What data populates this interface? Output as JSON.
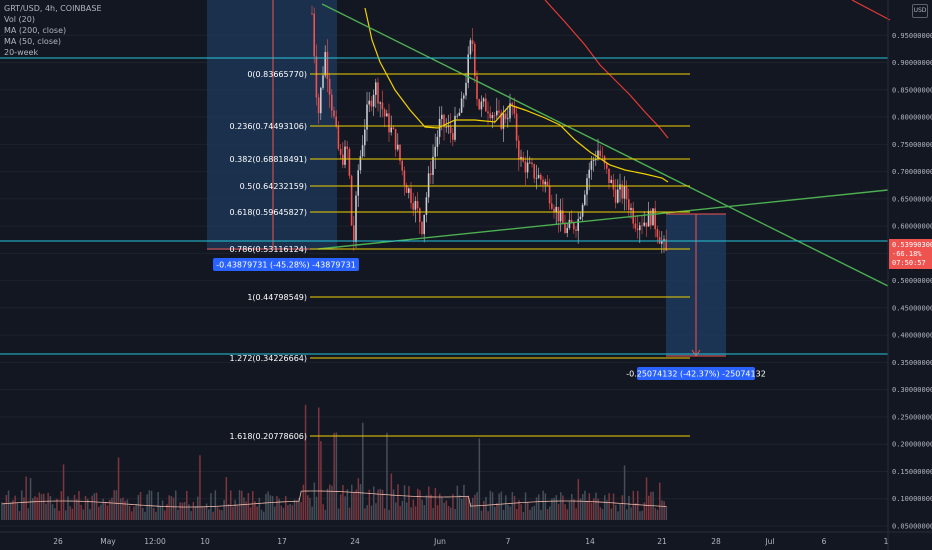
{
  "legend": {
    "symbol": "GRT/USD, 4h, COINBASE",
    "volume": "Vol (20)",
    "ma200": "MA (200, close)",
    "ma50": "MA (50, close)",
    "week": "20-week"
  },
  "colors": {
    "background": "#131722",
    "up": "#c7c9cf",
    "down": "#ef5350",
    "ma50": "#f0d000",
    "ma200": "#e53935",
    "trendline": "#4caf50",
    "fib": "#f0d000",
    "hline": "#26c6da",
    "measure_box": "#1e3a5c",
    "measure_text_bg": "#2962ff"
  },
  "chart_data": {
    "type": "candlestick",
    "symbol": "GRT/USD",
    "timeframe": "4h",
    "exchange": "COINBASE",
    "ylim": [
      0.05,
      1.0
    ],
    "y_ticks": [
      "0.95000000",
      "0.90000000",
      "0.85000000",
      "0.80000000",
      "0.75000000",
      "0.70000000",
      "0.65000000",
      "0.60000000",
      "0.55000000",
      "0.50000000",
      "0.45000000",
      "0.40000000",
      "0.35000000",
      "0.30000000",
      "0.25000000",
      "0.20000000",
      "0.15000000",
      "0.10000000",
      "0.05000000"
    ],
    "x_ticks": [
      "26",
      "May",
      "12:00",
      "10",
      "17",
      "24",
      "Jun",
      "7",
      "14",
      "21",
      "28",
      "Jul",
      "6",
      "1"
    ],
    "price_label": {
      "value": "0.53990300",
      "change": "-66.18%",
      "timer": "07:50:57"
    },
    "fib_levels": [
      {
        "label": "0(0.83665770)",
        "value": 0.8366577
      },
      {
        "label": "0.236(0.74493106)",
        "value": 0.74493106
      },
      {
        "label": "0.382(0.68818491)",
        "value": 0.68818491
      },
      {
        "label": "0.5(0.64232159)",
        "value": 0.64232159
      },
      {
        "label": "0.618(0.59645827)",
        "value": 0.59645827
      },
      {
        "label": "0.786(0.53116124)",
        "value": 0.53116124
      },
      {
        "label": "1(0.44798549)",
        "value": 0.44798549
      },
      {
        "label": "1.272(0.34226664)",
        "value": 0.34226664
      },
      {
        "label": "1.618(0.20778606)",
        "value": 0.20778606
      }
    ],
    "horizontal_lines": [
      0.86,
      0.54,
      0.35
    ],
    "measurements": [
      {
        "label": "-0.43879731 (-45.28%) -43879731"
      },
      {
        "label": "-0.25074132 (-42.37%) -25074132"
      }
    ]
  }
}
